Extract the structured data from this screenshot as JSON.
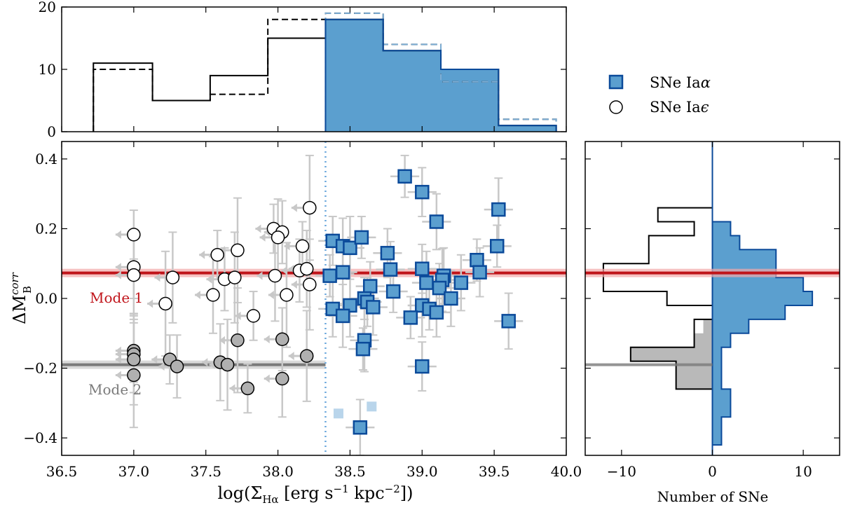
{
  "chart_data": [
    {
      "type": "step-histogram",
      "name": "top-histogram",
      "x_bins": [
        36.72,
        37.13,
        37.53,
        37.93,
        38.33,
        38.73,
        39.13,
        39.53,
        39.93
      ],
      "ylim": [
        0,
        20
      ],
      "yticks": [
        0,
        10,
        20
      ],
      "series": [
        {
          "name": "all (solid)",
          "style": "solid",
          "color": "#000000",
          "values": [
            11,
            5,
            9,
            15,
            18,
            13,
            10,
            1
          ]
        },
        {
          "name": "all (dashed)",
          "style": "dashed",
          "color": "#000000",
          "values": [
            10,
            5,
            6,
            18,
            19,
            14,
            8,
            2
          ]
        },
        {
          "name": "SNe Ia alpha",
          "style": "filled",
          "color": "#5b9fcf",
          "from_bin": 4,
          "values": [
            0,
            0,
            0,
            0,
            18,
            13,
            10,
            1
          ]
        }
      ]
    },
    {
      "type": "scatter",
      "name": "main-scatter",
      "xlabel": "log(Σ",
      "xlabel_sub": "Hα",
      "xlabel_rest": " [erg s",
      "xlabel_exp1": "−1",
      "xlabel_mid": " kpc",
      "xlabel_exp2": "−2",
      "xlabel_end": "])",
      "ylabel": "ΔM",
      "ylabel_sup": "corr",
      "ylabel_sub": "B",
      "xlim": [
        36.5,
        40.0
      ],
      "ylim": [
        -0.45,
        0.45
      ],
      "xticks": [
        "36.5",
        "37.0",
        "37.5",
        "38.0",
        "38.5",
        "39.0",
        "39.5",
        "40.0"
      ],
      "yticks": [
        "−0.4",
        "−0.2",
        "0.0",
        "0.2",
        "0.4"
      ],
      "threshold_x": 38.33,
      "mode1": {
        "label": "Mode 1",
        "y": 0.073,
        "color": "#c0141a"
      },
      "mode2": {
        "label": "Mode 2",
        "y": -0.19,
        "color": "#7a7a7a"
      },
      "series": [
        {
          "name": "SNe Ia alpha",
          "marker": "square",
          "color": "#5b9fcf",
          "edge": "#0b4a9a",
          "points": [
            [
              38.88,
              0.35
            ],
            [
              39.0,
              0.305
            ],
            [
              39.1,
              0.22
            ],
            [
              39.53,
              0.255
            ],
            [
              39.52,
              0.15
            ],
            [
              38.38,
              0.165
            ],
            [
              38.45,
              0.15
            ],
            [
              38.5,
              0.145
            ],
            [
              38.58,
              0.175
            ],
            [
              38.76,
              0.13
            ],
            [
              38.78,
              0.083
            ],
            [
              38.45,
              0.075
            ],
            [
              38.36,
              0.065
            ],
            [
              39.0,
              0.085
            ],
            [
              39.15,
              0.065
            ],
            [
              39.14,
              0.053
            ],
            [
              39.38,
              0.11
            ],
            [
              39.4,
              0.075
            ],
            [
              39.27,
              0.045
            ],
            [
              39.03,
              0.045
            ],
            [
              38.8,
              0.02
            ],
            [
              38.64,
              0.035
            ],
            [
              38.38,
              -0.03
            ],
            [
              38.5,
              -0.02
            ],
            [
              38.6,
              0.0
            ],
            [
              38.62,
              -0.01
            ],
            [
              38.66,
              -0.025
            ],
            [
              39.0,
              -0.02
            ],
            [
              39.05,
              -0.03
            ],
            [
              39.12,
              0.03
            ],
            [
              39.2,
              0.0
            ],
            [
              38.45,
              -0.05
            ],
            [
              38.92,
              -0.055
            ],
            [
              39.1,
              -0.04
            ],
            [
              39.6,
              -0.065
            ],
            [
              38.6,
              -0.12
            ],
            [
              38.59,
              -0.145
            ],
            [
              39.0,
              -0.195
            ],
            [
              38.57,
              -0.37
            ]
          ]
        },
        {
          "name": "SNe Ia epsilon (open)",
          "marker": "circle",
          "color": "#ffffff",
          "edge": "#000000",
          "points": [
            [
              37.0,
              0.183
            ],
            [
              37.0,
              0.09
            ],
            [
              37.0,
              0.067
            ],
            [
              37.27,
              0.06
            ],
            [
              37.22,
              -0.015
            ],
            [
              37.58,
              0.125
            ],
            [
              37.63,
              0.055
            ],
            [
              37.55,
              0.01
            ],
            [
              37.7,
              0.06
            ],
            [
              37.72,
              0.138
            ],
            [
              37.97,
              0.2
            ],
            [
              38.03,
              0.19
            ],
            [
              38.0,
              0.175
            ],
            [
              37.98,
              0.065
            ],
            [
              38.22,
              0.26
            ],
            [
              38.17,
              0.15
            ],
            [
              38.15,
              0.08
            ],
            [
              38.2,
              0.085
            ],
            [
              38.22,
              0.04
            ],
            [
              38.06,
              0.01
            ],
            [
              37.83,
              -0.05
            ]
          ]
        },
        {
          "name": "SNe Ia epsilon (grey)",
          "marker": "circle",
          "color": "#b0b0b0",
          "edge": "#000000",
          "points": [
            [
              37.0,
              -0.15
            ],
            [
              37.0,
              -0.16
            ],
            [
              37.0,
              -0.175
            ],
            [
              37.0,
              -0.22
            ],
            [
              37.25,
              -0.175
            ],
            [
              37.3,
              -0.195
            ],
            [
              37.6,
              -0.183
            ],
            [
              37.65,
              -0.19
            ],
            [
              37.72,
              -0.12
            ],
            [
              37.79,
              -0.258
            ],
            [
              38.03,
              -0.117
            ],
            [
              38.03,
              -0.23
            ],
            [
              38.2,
              -0.165
            ]
          ]
        },
        {
          "name": "faint",
          "marker": "square",
          "color": "#a8cbe6",
          "edge": "#a8cbe6",
          "points": [
            [
              38.42,
              -0.33
            ],
            [
              38.65,
              -0.31
            ]
          ]
        }
      ]
    },
    {
      "type": "horizontal-step-histogram",
      "name": "side-histogram",
      "xlabel": "Number of SNe",
      "xlim": [
        -14,
        14
      ],
      "xticks": [
        "−10",
        "0",
        "10"
      ],
      "xtick_values": [
        -10,
        0,
        10
      ],
      "y_edges": [
        -0.42,
        -0.38,
        -0.34,
        -0.3,
        -0.26,
        -0.22,
        -0.18,
        -0.14,
        -0.1,
        -0.06,
        -0.02,
        0.02,
        0.06,
        0.1,
        0.14,
        0.18,
        0.22,
        0.26,
        0.3
      ],
      "alpha_counts": [
        1,
        1,
        2,
        2,
        1,
        1,
        1,
        2,
        4,
        8,
        11,
        10,
        7,
        7,
        3,
        2,
        0,
        0
      ],
      "epsilon_outline_counts": [
        0,
        0,
        0,
        0,
        4,
        4,
        9,
        2,
        2,
        0,
        5,
        12,
        12,
        7,
        7,
        2,
        6,
        0
      ],
      "epsilon_grey_counts": [
        0,
        0,
        0,
        0,
        4,
        4,
        9,
        2,
        1,
        0,
        0,
        0,
        0,
        0,
        0,
        0,
        0,
        0
      ]
    }
  ],
  "legend": {
    "alpha_label": "SNe Ia",
    "alpha_greek": "α",
    "epsilon_label": "SNe Ia",
    "epsilon_greek": "ϵ"
  }
}
